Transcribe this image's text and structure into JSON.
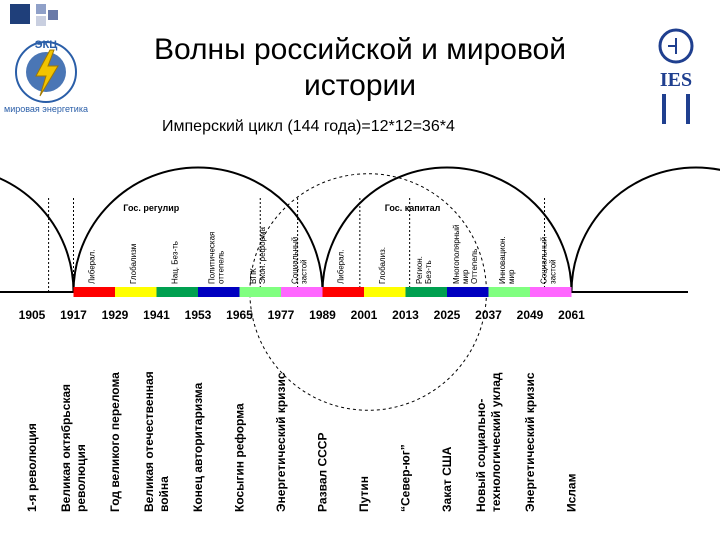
{
  "title": "Волны российской и мировой истории",
  "subtitle": "Имперский цикл (144 года)=12*12=36*4",
  "logo_left": {
    "arc_top": "ЭКЦ",
    "arc_bottom": "мировая энергетика",
    "colors": {
      "bolt": "#f2c400",
      "globe": "#2a5ea8"
    }
  },
  "logo_right": {
    "text": "IES",
    "color": "#1f3f8f"
  },
  "corner_squares": {
    "colors": [
      "#1f3f7a",
      "#8fa0c8",
      "#c9cfe0",
      "#6a7aa8"
    ]
  },
  "timeline": {
    "years": [
      "1905",
      "1917",
      "1929",
      "1941",
      "1953",
      "1965",
      "1977",
      "1989",
      "2001",
      "2013",
      "2025",
      "2037",
      "2049",
      "2061"
    ],
    "segment_colors": [
      "#ff0000",
      "#ffff00",
      "#00a050",
      "#0000c0",
      "#80ff80",
      "#ff66ff"
    ],
    "wave_labels": [
      {
        "text": "Гос. регулир"
      },
      {
        "text": "Гос. капитал"
      }
    ],
    "phase_labels": [
      {
        "lines": [
          "Либерал."
        ]
      },
      {
        "lines": [
          "Глобализм"
        ]
      },
      {
        "lines": [
          "Нац. Без-ть"
        ]
      },
      {
        "lines": [
          "Политическая",
          "оттепель"
        ]
      },
      {
        "lines": [
          "ВПК",
          "Экон. реформа"
        ]
      },
      {
        "lines": [
          "Социальный",
          "застой"
        ]
      },
      {
        "lines": [
          "Либерал."
        ]
      },
      {
        "lines": [
          "Глобализ."
        ]
      },
      {
        "lines": [
          "Регион.",
          "Без-ть"
        ]
      },
      {
        "lines": [
          "Многополярный",
          "мир",
          "Оттепель"
        ]
      },
      {
        "lines": [
          "Инновацион.",
          "мир"
        ]
      },
      {
        "lines": [
          "Социальный",
          "застой"
        ]
      }
    ]
  },
  "events": [
    {
      "lines": [
        "1-я революция"
      ]
    },
    {
      "lines": [
        "Великая октябрьская",
        "революция"
      ]
    },
    {
      "lines": [
        "Год великого перелома"
      ]
    },
    {
      "lines": [
        "Великая отечественная",
        "война"
      ]
    },
    {
      "lines": [
        "Конец авторитаризма"
      ]
    },
    {
      "lines": [
        "Косыгин реформа"
      ]
    },
    {
      "lines": [
        "Энергетический кризис"
      ]
    },
    {
      "lines": [
        "Развал СССР"
      ]
    },
    {
      "lines": [
        "Путин"
      ]
    },
    {
      "lines": [
        "“Север-юг”"
      ]
    },
    {
      "lines": [
        "Закат США"
      ]
    },
    {
      "lines": [
        "Новый социально-",
        "технологический уклад"
      ]
    },
    {
      "lines": [
        "Энергетический кризис"
      ]
    },
    {
      "lines": [
        "Ислам"
      ]
    }
  ]
}
